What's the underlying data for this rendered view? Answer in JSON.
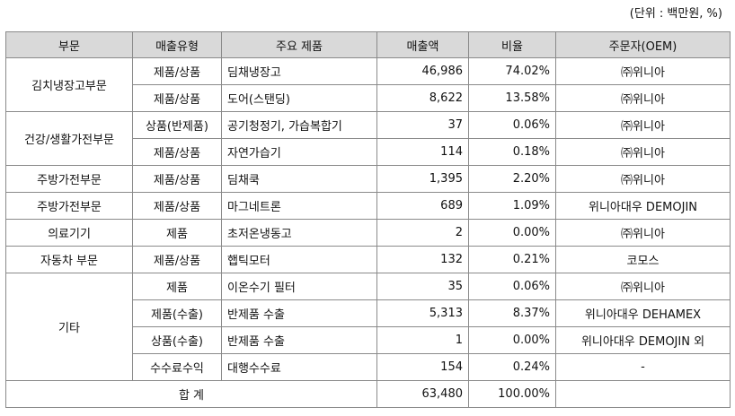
{
  "unit_note": "(단위 : 백만원, %)",
  "headers": [
    "부문",
    "매출유형",
    "주요 제품",
    "매출액",
    "비율",
    "주문자(OEM)"
  ],
  "rows": [
    {
      "division": "김치냉장고부문",
      "type": "제품/상품",
      "product": "딤채냉장고",
      "sales": "46,986",
      "ratio": "74.02%",
      "oem": "㈜위니아"
    },
    {
      "type": "제품/상품",
      "product": "도어(스탠딩)",
      "sales": "8,622",
      "ratio": "13.58%",
      "oem": "㈜위니아"
    },
    {
      "division": "건강/생활가전부문",
      "type": "상품(반제품)",
      "product": "공기청정기, 가습복합기",
      "sales": "37",
      "ratio": "0.06%",
      "oem": "㈜위니아"
    },
    {
      "type": "제품/상품",
      "product": "자연가습기",
      "sales": "114",
      "ratio": "0.18%",
      "oem": "㈜위니아"
    },
    {
      "division": "주방가전부문",
      "type": "제품/상품",
      "product": "딤채쿡",
      "sales": "1,395",
      "ratio": "2.20%",
      "oem": "㈜위니아"
    },
    {
      "division": "주방가전부문",
      "type": "제품/상품",
      "product": "마그네트론",
      "sales": "689",
      "ratio": "1.09%",
      "oem": "위니아대우 DEMOJIN"
    },
    {
      "division": "의료기기",
      "type": "제품",
      "product": "초저온냉동고",
      "sales": "2",
      "ratio": "0.00%",
      "oem": "㈜위니아"
    },
    {
      "division": "자동차 부문",
      "type": "제품/상품",
      "product": "햅틱모터",
      "sales": "132",
      "ratio": "0.21%",
      "oem": "코모스"
    },
    {
      "division": "기타",
      "type": "제품",
      "product": "이온수기 필터",
      "sales": "35",
      "ratio": "0.06%",
      "oem": "㈜위니아"
    },
    {
      "type": "제품(수출)",
      "product": "반제품 수출",
      "sales": "5,313",
      "ratio": "8.37%",
      "oem": "위니아대우 DEHAMEX"
    },
    {
      "type": "상품(수출)",
      "product": "반제품 수출",
      "sales": "1",
      "ratio": "0.00%",
      "oem": "위니아대우 DEMOJIN 외"
    },
    {
      "type": "수수료수익",
      "product": "대행수수료",
      "sales": "154",
      "ratio": "0.24%",
      "oem": "-"
    }
  ],
  "total": {
    "label": "합 계",
    "sales": "63,480",
    "ratio": "100.00%",
    "oem": ""
  }
}
